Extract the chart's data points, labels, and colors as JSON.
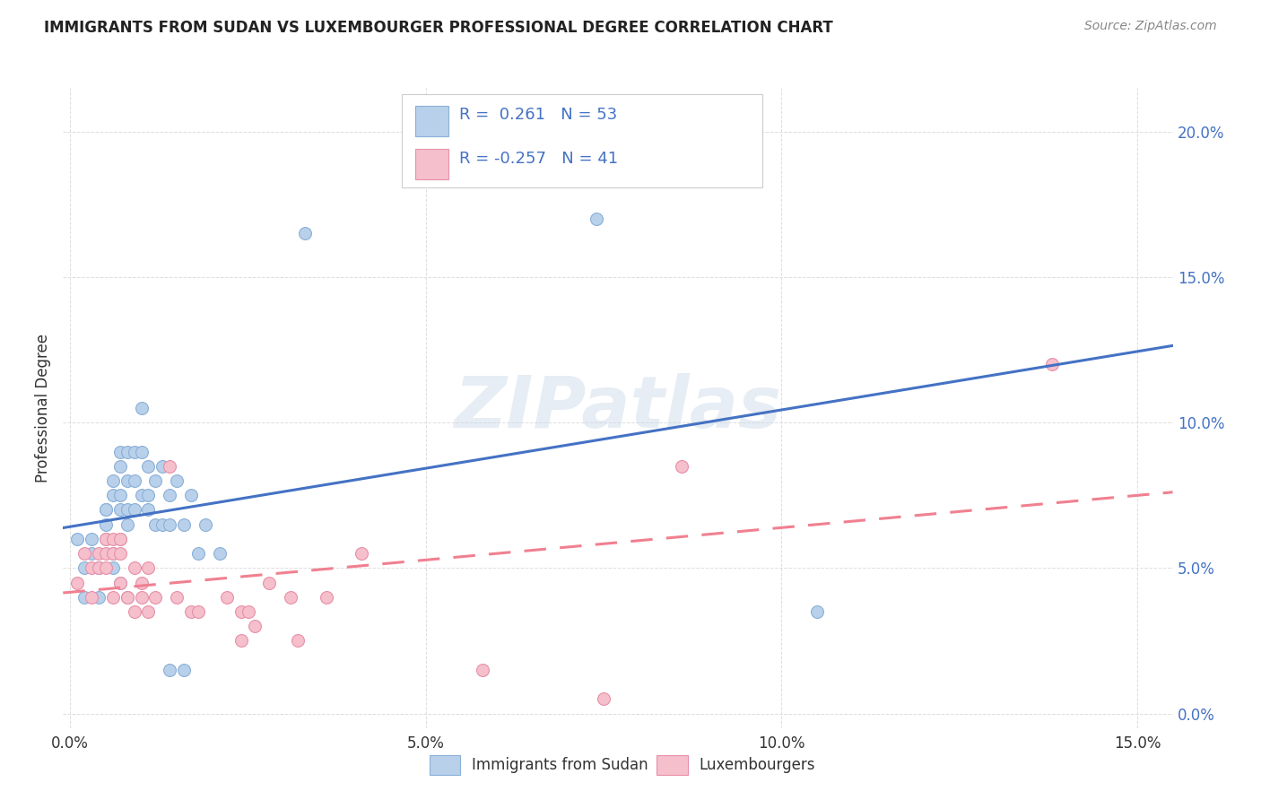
{
  "title": "IMMIGRANTS FROM SUDAN VS LUXEMBOURGER PROFESSIONAL DEGREE CORRELATION CHART",
  "source": "Source: ZipAtlas.com",
  "ylabel": "Professional Degree",
  "x_tick_labels": [
    "0.0%",
    "5.0%",
    "10.0%",
    "15.0%"
  ],
  "x_tick_values": [
    0.0,
    0.05,
    0.1,
    0.15
  ],
  "y_tick_labels_right": [
    "0.0%",
    "5.0%",
    "10.0%",
    "15.0%",
    "20.0%"
  ],
  "y_tick_values": [
    0.0,
    0.05,
    0.1,
    0.15,
    0.2
  ],
  "xlim": [
    -0.001,
    0.155
  ],
  "ylim": [
    -0.005,
    0.215
  ],
  "sudan_color": "#b8d0ea",
  "sudan_edge_color": "#8ab0d8",
  "luxembourger_color": "#f5bfcc",
  "luxembourger_edge_color": "#e890a8",
  "trend_sudan_color": "#4472c4",
  "trend_lux_color": "#f08090",
  "watermark": "ZIPatlas",
  "R1": "0.261",
  "N1": "53",
  "R2": "-0.257",
  "N2": "41",
  "legend_label1": "Immigrants from Sudan",
  "legend_label2": "Luxembourgers",
  "background_color": "#ffffff",
  "grid_color": "#dddddd",
  "sudan_x": [
    0.001,
    0.002,
    0.002,
    0.003,
    0.003,
    0.004,
    0.004,
    0.004,
    0.005,
    0.005,
    0.005,
    0.005,
    0.006,
    0.006,
    0.006,
    0.006,
    0.007,
    0.007,
    0.007,
    0.007,
    0.007,
    0.007,
    0.008,
    0.008,
    0.008,
    0.008,
    0.008,
    0.009,
    0.009,
    0.009,
    0.01,
    0.01,
    0.01,
    0.011,
    0.011,
    0.011,
    0.012,
    0.012,
    0.013,
    0.013,
    0.014,
    0.014,
    0.014,
    0.015,
    0.016,
    0.016,
    0.017,
    0.018,
    0.019,
    0.021,
    0.033,
    0.074,
    0.105
  ],
  "sudan_y": [
    0.06,
    0.05,
    0.04,
    0.06,
    0.055,
    0.05,
    0.05,
    0.04,
    0.07,
    0.07,
    0.065,
    0.06,
    0.08,
    0.075,
    0.055,
    0.05,
    0.09,
    0.085,
    0.075,
    0.07,
    0.06,
    0.045,
    0.09,
    0.08,
    0.07,
    0.065,
    0.04,
    0.09,
    0.08,
    0.07,
    0.105,
    0.09,
    0.075,
    0.085,
    0.075,
    0.07,
    0.08,
    0.065,
    0.085,
    0.065,
    0.075,
    0.065,
    0.015,
    0.08,
    0.065,
    0.015,
    0.075,
    0.055,
    0.065,
    0.055,
    0.165,
    0.17,
    0.035
  ],
  "lux_x": [
    0.001,
    0.002,
    0.003,
    0.003,
    0.004,
    0.004,
    0.005,
    0.005,
    0.005,
    0.006,
    0.006,
    0.006,
    0.007,
    0.007,
    0.007,
    0.008,
    0.009,
    0.009,
    0.01,
    0.01,
    0.011,
    0.011,
    0.012,
    0.014,
    0.015,
    0.017,
    0.018,
    0.022,
    0.024,
    0.024,
    0.025,
    0.026,
    0.028,
    0.031,
    0.032,
    0.036,
    0.041,
    0.058,
    0.075,
    0.086,
    0.138
  ],
  "lux_y": [
    0.045,
    0.055,
    0.05,
    0.04,
    0.055,
    0.05,
    0.06,
    0.055,
    0.05,
    0.06,
    0.055,
    0.04,
    0.06,
    0.055,
    0.045,
    0.04,
    0.05,
    0.035,
    0.045,
    0.04,
    0.05,
    0.035,
    0.04,
    0.085,
    0.04,
    0.035,
    0.035,
    0.04,
    0.035,
    0.025,
    0.035,
    0.03,
    0.045,
    0.04,
    0.025,
    0.04,
    0.055,
    0.015,
    0.005,
    0.085,
    0.12
  ]
}
